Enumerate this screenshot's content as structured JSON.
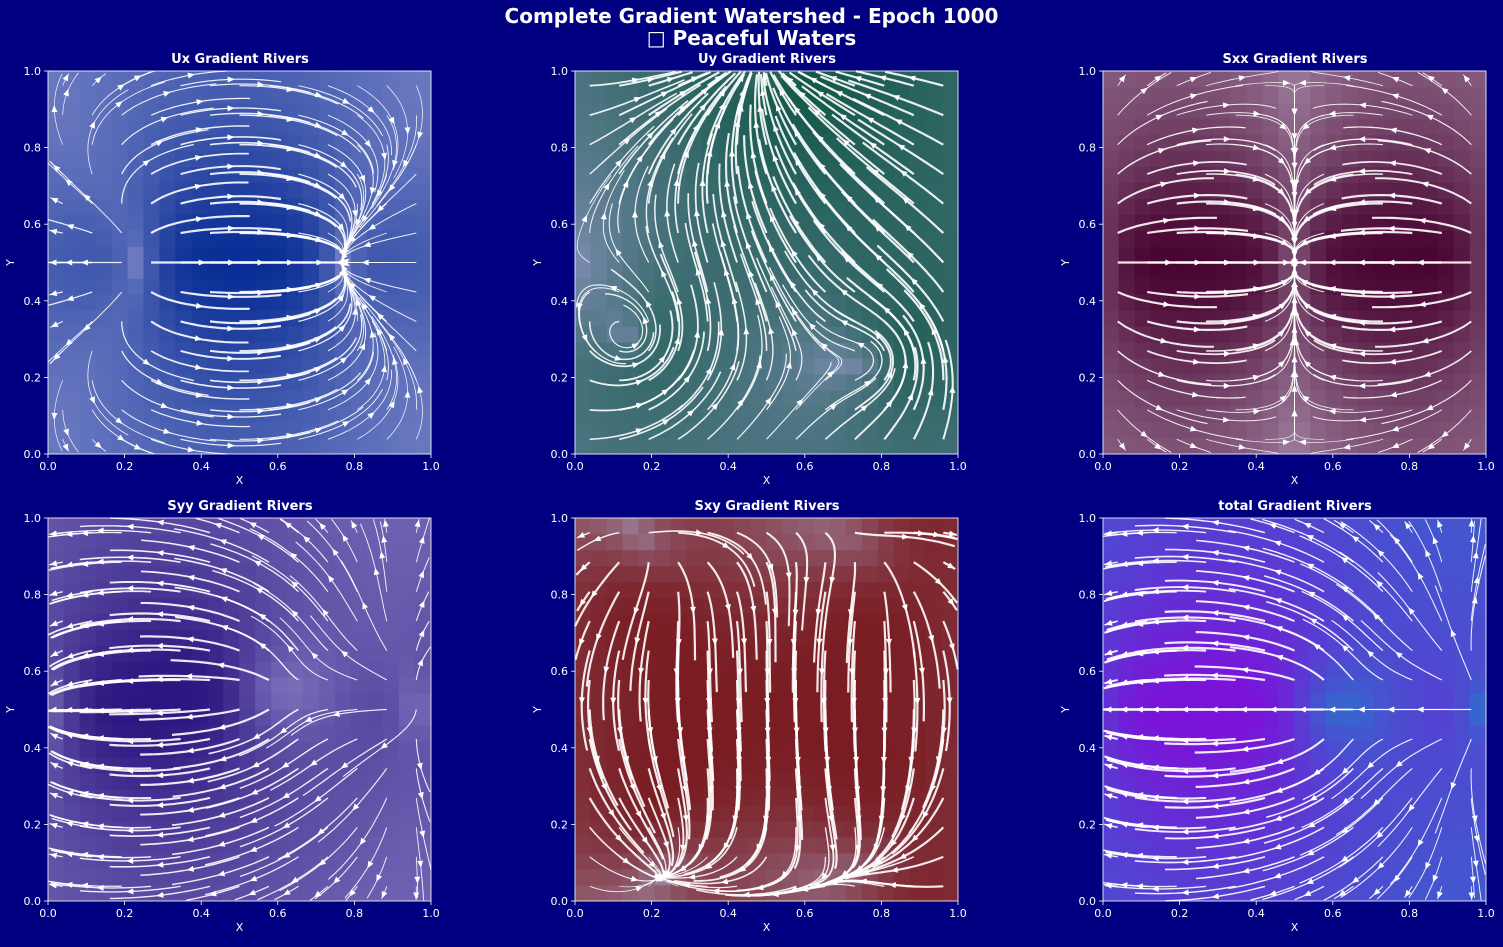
{
  "figure": {
    "title_line1": "Complete Gradient Watershed - Epoch 1000",
    "title_line2": "□ Peaceful Waters"
  },
  "chart_data": [
    {
      "type": "streamplot",
      "title": "Ux Gradient Rivers",
      "xlabel": "X",
      "ylabel": "Y",
      "xlim": [
        0,
        1
      ],
      "ylim": [
        0,
        1
      ],
      "xticks": [
        "0.0",
        "0.2",
        "0.4",
        "0.6",
        "0.8",
        "1.0"
      ],
      "yticks": [
        "0.0",
        "0.2",
        "0.4",
        "0.6",
        "0.8",
        "1.0"
      ],
      "colormap": {
        "low": "#8d95d0",
        "high": "#0b2f96"
      },
      "field": {
        "kind": "dipole",
        "sources": [
          [
            0.27,
            0.5
          ],
          [
            0.73,
            0.5
          ]
        ],
        "centers": [
          [
            0.5,
            0.5
          ]
        ]
      }
    },
    {
      "type": "streamplot",
      "title": "Uy Gradient Rivers",
      "xlabel": "X",
      "ylabel": "Y",
      "xlim": [
        0,
        1
      ],
      "ylim": [
        0,
        1
      ],
      "xticks": [
        "0.0",
        "0.2",
        "0.4",
        "0.6",
        "0.8",
        "1.0"
      ],
      "yticks": [
        "0.0",
        "0.2",
        "0.4",
        "0.6",
        "0.8",
        "1.0"
      ],
      "colormap": {
        "low": "#9598c8",
        "high": "#14594a"
      },
      "field": {
        "kind": "radial",
        "sources": [
          [
            0.5,
            1.05
          ]
        ],
        "centers": [
          [
            0.15,
            0.3
          ],
          [
            0.8,
            0.25
          ]
        ]
      }
    },
    {
      "type": "streamplot",
      "title": "Sxx Gradient Rivers",
      "xlabel": "X",
      "ylabel": "Y",
      "xlim": [
        0,
        1
      ],
      "ylim": [
        0,
        1
      ],
      "xticks": [
        "0.0",
        "0.2",
        "0.4",
        "0.6",
        "0.8",
        "1.0"
      ],
      "yticks": [
        "0.0",
        "0.2",
        "0.4",
        "0.6",
        "0.8",
        "1.0"
      ],
      "colormap": {
        "low": "#a68aa8",
        "high": "#4a0633"
      },
      "field": {
        "kind": "dipole",
        "sources": [
          [
            0.0,
            0.5
          ],
          [
            0.5,
            0.5
          ],
          [
            1.0,
            0.5
          ]
        ],
        "centers": [
          [
            0.25,
            0.5
          ],
          [
            0.75,
            0.5
          ]
        ]
      }
    },
    {
      "type": "streamplot",
      "title": "Syy Gradient Rivers",
      "xlabel": "X",
      "ylabel": "Y",
      "xlim": [
        0,
        1
      ],
      "ylim": [
        0,
        1
      ],
      "xticks": [
        "0.0",
        "0.2",
        "0.4",
        "0.6",
        "0.8",
        "1.0"
      ],
      "yticks": [
        "0.0",
        "0.2",
        "0.4",
        "0.6",
        "0.8",
        "1.0"
      ],
      "colormap": {
        "low": "#9a93d3",
        "high": "#2c157f"
      },
      "field": {
        "kind": "dipole",
        "sources": [
          [
            0.5,
            0.55
          ],
          [
            0.05,
            0.5
          ],
          [
            0.98,
            0.5
          ]
        ],
        "centers": [
          [
            0.25,
            0.45
          ],
          [
            0.72,
            0.6
          ]
        ]
      }
    },
    {
      "type": "streamplot",
      "title": "Sxy Gradient Rivers",
      "xlabel": "X",
      "ylabel": "Y",
      "xlim": [
        0,
        1
      ],
      "ylim": [
        0,
        1
      ],
      "xticks": [
        "0.0",
        "0.2",
        "0.4",
        "0.6",
        "0.8",
        "1.0"
      ],
      "yticks": [
        "0.0",
        "0.2",
        "0.4",
        "0.6",
        "0.8",
        "1.0"
      ],
      "colormap": {
        "low": "#a498b6",
        "high": "#7a1c22"
      },
      "field": {
        "kind": "saddle",
        "sources": [
          [
            0.25,
            0.12
          ],
          [
            0.8,
            0.12
          ],
          [
            0.2,
            0.9
          ],
          [
            0.8,
            0.9
          ]
        ],
        "centers": [
          [
            0.5,
            0.5
          ],
          [
            0.15,
            0.55
          ],
          [
            0.85,
            0.55
          ]
        ]
      }
    },
    {
      "type": "streamplot",
      "title": "total Gradient Rivers",
      "xlabel": "X",
      "ylabel": "Y",
      "xlim": [
        0,
        1
      ],
      "ylim": [
        0,
        1
      ],
      "xticks": [
        "0.0",
        "0.2",
        "0.4",
        "0.6",
        "0.8",
        "1.0"
      ],
      "yticks": [
        "0.0",
        "0.2",
        "0.4",
        "0.6",
        "0.8",
        "1.0"
      ],
      "colormap": {
        "low": "#1c86c9",
        "high": "#7b12d8"
      },
      "field": {
        "kind": "dipole",
        "sources": [
          [
            0.5,
            0.5
          ],
          [
            0.0,
            0.5
          ],
          [
            1.0,
            0.5
          ]
        ],
        "centers": [
          [
            0.25,
            0.5
          ],
          [
            0.75,
            0.5
          ]
        ]
      }
    }
  ]
}
